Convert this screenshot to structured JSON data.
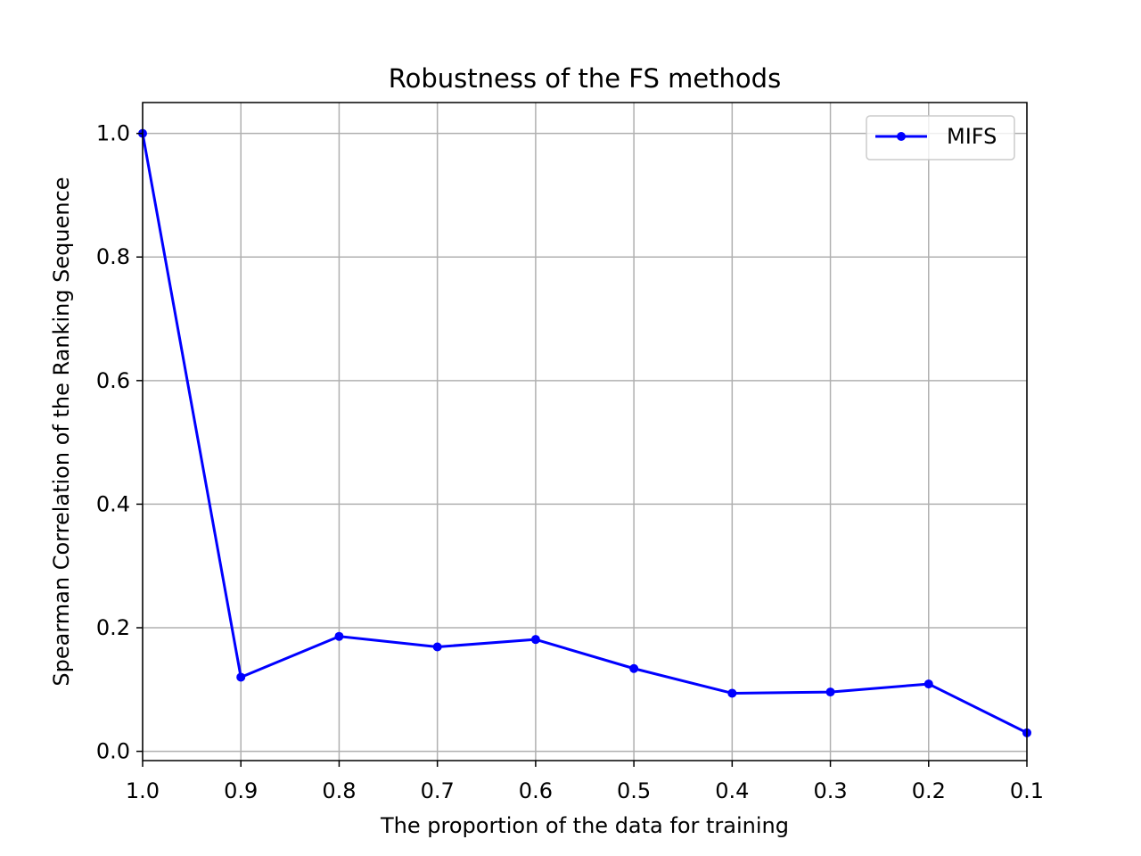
{
  "chart_data": {
    "type": "line",
    "title": "Robustness of the FS methods",
    "xlabel": "The proportion of the data for training",
    "ylabel": "Spearman Correlation of the Ranking Sequence",
    "x_reversed": true,
    "xlim": [
      1.0,
      0.1
    ],
    "ylim": [
      -0.015,
      1.05
    ],
    "x_ticks": [
      "1.0",
      "0.9",
      "0.8",
      "0.7",
      "0.6",
      "0.5",
      "0.4",
      "0.3",
      "0.2",
      "0.1"
    ],
    "x_tick_values": [
      1.0,
      0.9,
      0.8,
      0.7,
      0.6,
      0.5,
      0.4,
      0.3,
      0.2,
      0.1
    ],
    "y_ticks": [
      "0.0",
      "0.2",
      "0.4",
      "0.6",
      "0.8",
      "1.0"
    ],
    "y_tick_values": [
      0.0,
      0.2,
      0.4,
      0.6,
      0.8,
      1.0
    ],
    "grid": true,
    "legend_position": "top-right",
    "x": [
      1.0,
      0.9,
      0.8,
      0.7,
      0.6,
      0.5,
      0.4,
      0.3,
      0.2,
      0.1
    ],
    "series": [
      {
        "name": "MIFS",
        "color": "#0000ff",
        "marker": "circle",
        "values": [
          1.0,
          0.12,
          0.186,
          0.169,
          0.181,
          0.134,
          0.094,
          0.096,
          0.109,
          0.03
        ]
      }
    ]
  }
}
